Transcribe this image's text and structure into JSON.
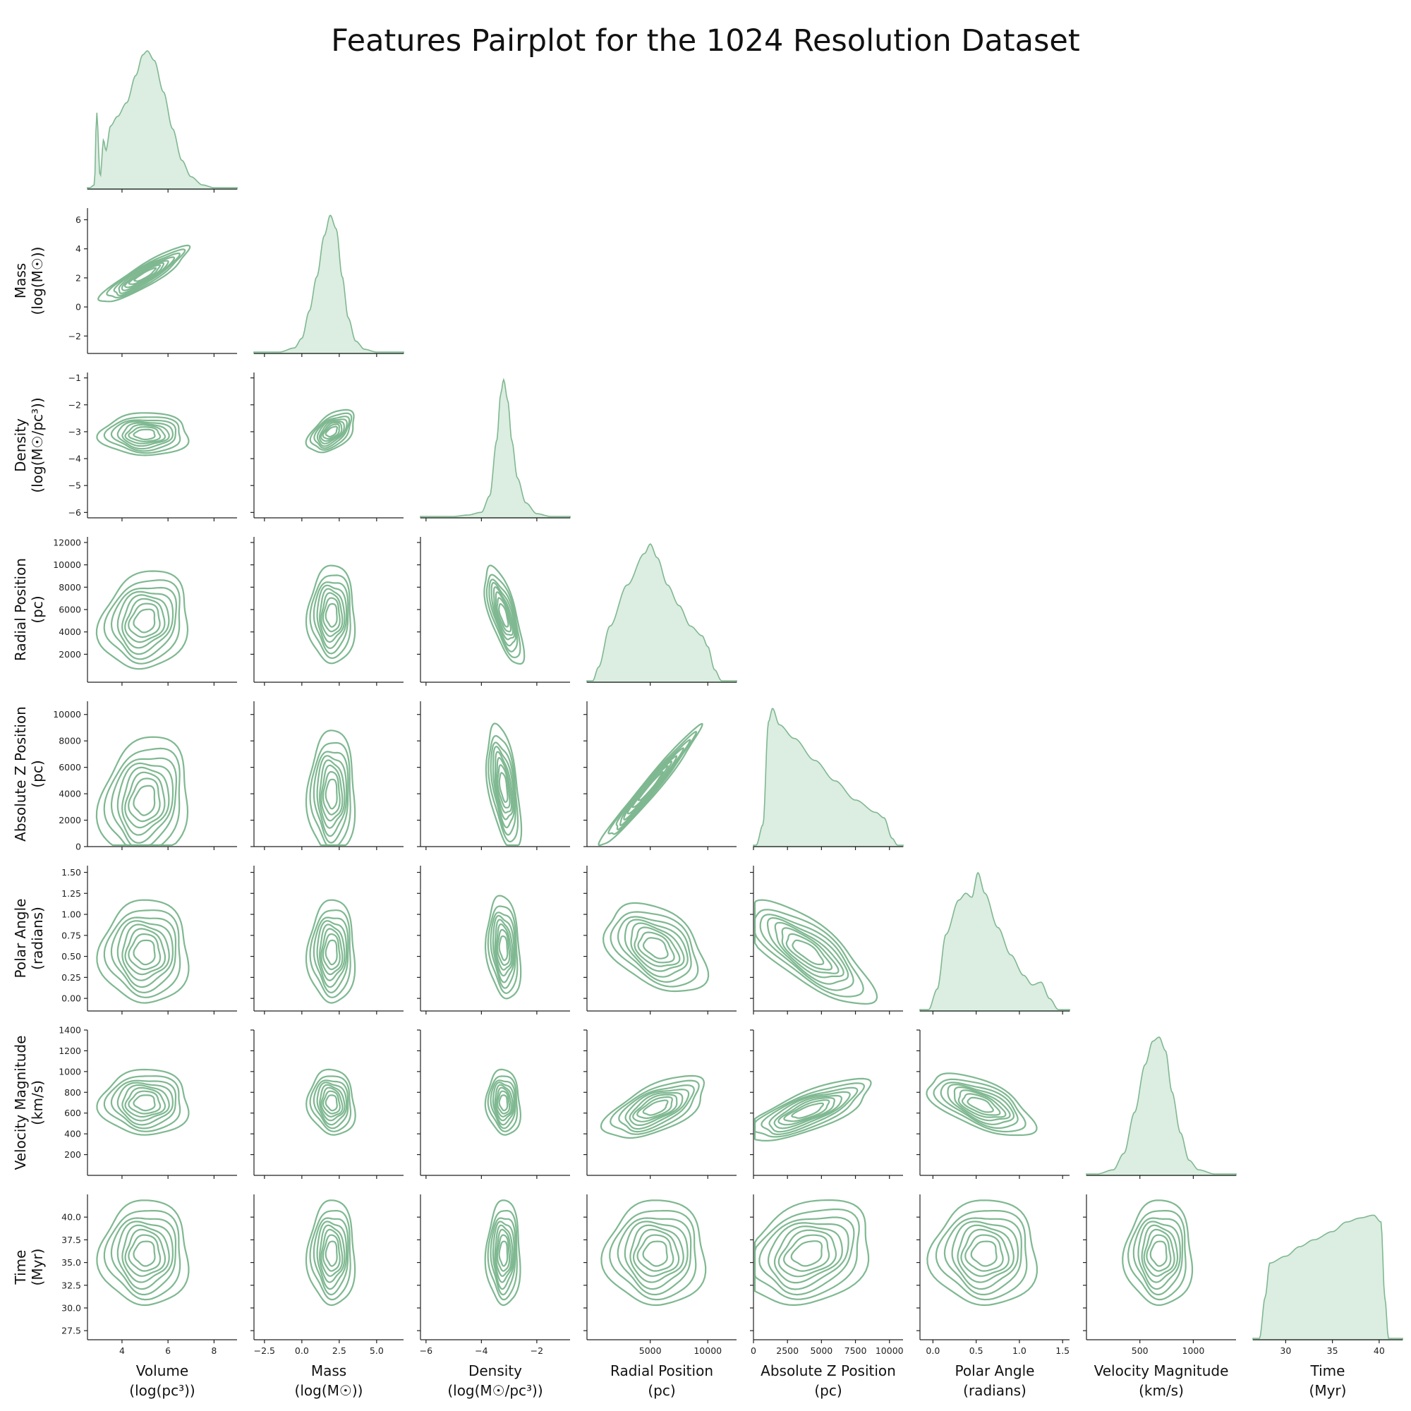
{
  "chart_data": {
    "type": "pairplot",
    "title": "Features Pairplot for the 1024 Resolution Dataset",
    "color": "#7fb891",
    "fill_color": "#dcede1",
    "lower_triangle": "kde contour (bivariate density)",
    "diagonal": "kde (univariate density, filled)",
    "upper_triangle": "empty (corner plot)",
    "variables": [
      {
        "key": "volume",
        "label_line1": "Volume",
        "label_line2": "(log(pc³))",
        "range": [
          2.5,
          9.0
        ],
        "ticks": [
          4,
          6,
          8
        ],
        "tick_labels": [
          "4",
          "6",
          "8"
        ],
        "diag_shape": [
          [
            2.6,
            0.0
          ],
          [
            2.8,
            0.02
          ],
          [
            2.9,
            0.55
          ],
          [
            3.05,
            0.08
          ],
          [
            3.2,
            0.35
          ],
          [
            3.3,
            0.27
          ],
          [
            3.5,
            0.45
          ],
          [
            3.8,
            0.52
          ],
          [
            4.2,
            0.62
          ],
          [
            4.6,
            0.82
          ],
          [
            4.9,
            0.97
          ],
          [
            5.1,
            1.0
          ],
          [
            5.4,
            0.93
          ],
          [
            5.8,
            0.7
          ],
          [
            6.2,
            0.43
          ],
          [
            6.6,
            0.2
          ],
          [
            7.0,
            0.08
          ],
          [
            7.5,
            0.02
          ],
          [
            8.0,
            0.0
          ],
          [
            9.0,
            0.0
          ]
        ]
      },
      {
        "key": "mass",
        "label_line1": "Mass",
        "label_line2": "(log(M☉))",
        "range": [
          -3.2,
          6.8
        ],
        "ticks": [
          -2.5,
          0.0,
          2.5,
          5.0
        ],
        "tick_labels": [
          "−2.5",
          "0.0",
          "2.5",
          "5.0"
        ],
        "y_ticks": [
          -2,
          0,
          2,
          4,
          6
        ],
        "y_tick_labels": [
          "−2",
          "0",
          "2",
          "4",
          "6"
        ],
        "diag_shape": [
          [
            -3.2,
            0.0
          ],
          [
            -1.5,
            0.0
          ],
          [
            -0.5,
            0.03
          ],
          [
            0.0,
            0.1
          ],
          [
            0.5,
            0.3
          ],
          [
            1.0,
            0.55
          ],
          [
            1.5,
            0.85
          ],
          [
            1.9,
            1.0
          ],
          [
            2.3,
            0.9
          ],
          [
            2.7,
            0.55
          ],
          [
            3.1,
            0.25
          ],
          [
            3.6,
            0.08
          ],
          [
            4.2,
            0.02
          ],
          [
            5.0,
            0.0
          ],
          [
            6.8,
            0.0
          ]
        ]
      },
      {
        "key": "density",
        "label_line1": "Density",
        "label_line2": "(log(M☉/pc³))",
        "range": [
          -6.2,
          -0.8
        ],
        "ticks": [
          -6,
          -4,
          -2
        ],
        "tick_labels": [
          "−6",
          "−4",
          "−2"
        ],
        "y_ticks": [
          -6,
          -5,
          -4,
          -3,
          -2,
          -1
        ],
        "y_tick_labels": [
          "−6",
          "−5",
          "−4",
          "−3",
          "−2",
          "−1"
        ],
        "diag_shape": [
          [
            -6.2,
            0.0
          ],
          [
            -5.0,
            0.0
          ],
          [
            -4.5,
            0.01
          ],
          [
            -4.0,
            0.03
          ],
          [
            -3.7,
            0.15
          ],
          [
            -3.45,
            0.55
          ],
          [
            -3.3,
            0.9
          ],
          [
            -3.2,
            1.0
          ],
          [
            -3.05,
            0.85
          ],
          [
            -2.9,
            0.55
          ],
          [
            -2.7,
            0.28
          ],
          [
            -2.4,
            0.1
          ],
          [
            -2.0,
            0.02
          ],
          [
            -1.5,
            0.0
          ],
          [
            -0.8,
            0.0
          ]
        ]
      },
      {
        "key": "radial",
        "label_line1": "Radial Position",
        "label_line2": "(pc)",
        "range": [
          -500,
          12500
        ],
        "ticks": [
          5000,
          10000
        ],
        "tick_labels": [
          "5000",
          "10000"
        ],
        "y_ticks": [
          2000,
          4000,
          6000,
          8000,
          10000,
          12000
        ],
        "y_tick_labels": [
          "2000",
          "4000",
          "6000",
          "8000",
          "10000",
          "12000"
        ],
        "diag_shape": [
          [
            -500,
            0.0
          ],
          [
            0,
            0.0
          ],
          [
            500,
            0.1
          ],
          [
            1500,
            0.4
          ],
          [
            3000,
            0.7
          ],
          [
            4500,
            0.93
          ],
          [
            5000,
            1.0
          ],
          [
            5600,
            0.9
          ],
          [
            6500,
            0.7
          ],
          [
            7500,
            0.55
          ],
          [
            8500,
            0.4
          ],
          [
            9500,
            0.33
          ],
          [
            10000,
            0.25
          ],
          [
            10600,
            0.08
          ],
          [
            11200,
            0.0
          ],
          [
            12500,
            0.0
          ]
        ]
      },
      {
        "key": "absz",
        "label_line1": "Absolute Z Position",
        "label_line2": "(pc)",
        "range": [
          0,
          11000
        ],
        "ticks": [
          0,
          2500,
          5000,
          7500,
          10000
        ],
        "tick_labels": [
          "0",
          "2500",
          "5000",
          "7500",
          "10000"
        ],
        "y_ticks": [
          0,
          2000,
          4000,
          6000,
          8000,
          10000
        ],
        "y_tick_labels": [
          "0",
          "2000",
          "4000",
          "6000",
          "8000",
          "10000"
        ],
        "diag_shape": [
          [
            0,
            0.0
          ],
          [
            200,
            0.0
          ],
          [
            700,
            0.15
          ],
          [
            1100,
            0.9
          ],
          [
            1400,
            1.0
          ],
          [
            1900,
            0.88
          ],
          [
            3000,
            0.78
          ],
          [
            4500,
            0.62
          ],
          [
            6000,
            0.47
          ],
          [
            7500,
            0.33
          ],
          [
            9000,
            0.24
          ],
          [
            9600,
            0.2
          ],
          [
            10200,
            0.05
          ],
          [
            10600,
            0.0
          ],
          [
            11000,
            0.0
          ]
        ]
      },
      {
        "key": "polar",
        "label_line1": "Polar Angle",
        "label_line2": "(radians)",
        "range": [
          -0.15,
          1.58
        ],
        "ticks": [
          0.0,
          0.5,
          1.0,
          1.5
        ],
        "tick_labels": [
          "0.0",
          "0.5",
          "1.0",
          "1.5"
        ],
        "y_ticks": [
          0.0,
          0.25,
          0.5,
          0.75,
          1.0,
          1.25,
          1.5
        ],
        "y_tick_labels": [
          "0.00",
          "0.25",
          "0.50",
          "0.75",
          "1.00",
          "1.25",
          "1.50"
        ],
        "diag_shape": [
          [
            -0.15,
            0.0
          ],
          [
            -0.05,
            0.0
          ],
          [
            0.05,
            0.15
          ],
          [
            0.15,
            0.55
          ],
          [
            0.3,
            0.8
          ],
          [
            0.38,
            0.85
          ],
          [
            0.45,
            0.82
          ],
          [
            0.52,
            1.0
          ],
          [
            0.6,
            0.85
          ],
          [
            0.75,
            0.6
          ],
          [
            0.9,
            0.4
          ],
          [
            1.05,
            0.25
          ],
          [
            1.15,
            0.18
          ],
          [
            1.25,
            0.2
          ],
          [
            1.35,
            0.08
          ],
          [
            1.45,
            0.0
          ],
          [
            1.58,
            0.0
          ]
        ]
      },
      {
        "key": "velocity",
        "label_line1": "Velocity Magnitude",
        "label_line2": "(km/s)",
        "range": [
          0,
          1400
        ],
        "ticks": [
          500,
          1000
        ],
        "tick_labels": [
          "500",
          "1000"
        ],
        "y_ticks": [
          200,
          400,
          600,
          800,
          1000,
          1200,
          1400
        ],
        "y_tick_labels": [
          "200",
          "400",
          "600",
          "800",
          "1000",
          "1200",
          "1400"
        ],
        "diag_shape": [
          [
            0,
            0.0
          ],
          [
            100,
            0.0
          ],
          [
            250,
            0.03
          ],
          [
            350,
            0.15
          ],
          [
            450,
            0.45
          ],
          [
            550,
            0.8
          ],
          [
            620,
            0.97
          ],
          [
            680,
            1.0
          ],
          [
            740,
            0.9
          ],
          [
            800,
            0.6
          ],
          [
            880,
            0.3
          ],
          [
            960,
            0.1
          ],
          [
            1050,
            0.03
          ],
          [
            1200,
            0.0
          ],
          [
            1400,
            0.0
          ]
        ]
      },
      {
        "key": "time",
        "label_line1": "Time",
        "label_line2": "(Myr)",
        "range": [
          26.5,
          42.5
        ],
        "ticks": [
          30,
          35,
          40
        ],
        "tick_labels": [
          "30",
          "35",
          "40"
        ],
        "y_ticks": [
          27.5,
          30.0,
          32.5,
          35.0,
          37.5,
          40.0
        ],
        "y_tick_labels": [
          "27.5",
          "30.0",
          "32.5",
          "35.0",
          "37.5",
          "40.0"
        ],
        "diag_shape": [
          [
            26.5,
            0.0
          ],
          [
            27.2,
            0.0
          ],
          [
            27.8,
            0.3
          ],
          [
            28.3,
            0.55
          ],
          [
            30,
            0.6
          ],
          [
            31.5,
            0.67
          ],
          [
            33,
            0.72
          ],
          [
            35,
            0.78
          ],
          [
            36.5,
            0.85
          ],
          [
            38,
            0.88
          ],
          [
            39.4,
            0.9
          ],
          [
            40.2,
            0.85
          ],
          [
            40.6,
            0.3
          ],
          [
            41,
            0.0
          ],
          [
            42.5,
            0.0
          ]
        ]
      }
    ],
    "bivariate_modes": [
      {
        "pair": [
          "volume",
          "mass"
        ],
        "cx": 5.0,
        "cy": 2.2,
        "sx": 1.1,
        "sy": 1.1,
        "correlation": 0.9
      },
      {
        "pair": [
          "volume",
          "density"
        ],
        "cx": 5.0,
        "cy": -3.1,
        "sx": 1.1,
        "sy": 0.45,
        "correlation": 0.0
      },
      {
        "pair": [
          "mass",
          "density"
        ],
        "cx": 2.0,
        "cy": -3.0,
        "sx": 0.9,
        "sy": 0.45,
        "correlation": 0.5
      },
      {
        "pair": [
          "volume",
          "radial"
        ],
        "cx": 5.0,
        "cy": 5000,
        "sx": 1.1,
        "sy": 2500,
        "correlation": 0.15
      },
      {
        "pair": [
          "mass",
          "radial"
        ],
        "cx": 2.0,
        "cy": 5500,
        "sx": 0.9,
        "sy": 2500,
        "correlation": 0.0
      },
      {
        "pair": [
          "density",
          "radial"
        ],
        "cx": -3.2,
        "cy": 5500,
        "sx": 0.4,
        "sy": 2500,
        "correlation": -0.7
      },
      {
        "pair": [
          "volume",
          "absz"
        ],
        "cx": 5.0,
        "cy": 3500,
        "sx": 1.1,
        "sy": 2700,
        "correlation": 0.15
      },
      {
        "pair": [
          "mass",
          "absz"
        ],
        "cx": 2.0,
        "cy": 4000,
        "sx": 0.9,
        "sy": 2700,
        "correlation": 0.0
      },
      {
        "pair": [
          "density",
          "absz"
        ],
        "cx": -3.2,
        "cy": 4500,
        "sx": 0.35,
        "sy": 2700,
        "correlation": -0.5
      },
      {
        "pair": [
          "radial",
          "absz"
        ],
        "cx": 5000,
        "cy": 4500,
        "sx": 2500,
        "sy": 2600,
        "correlation": 0.98
      },
      {
        "pair": [
          "volume",
          "polar"
        ],
        "cx": 5.0,
        "cy": 0.55,
        "sx": 1.1,
        "sy": 0.35,
        "correlation": 0.0
      },
      {
        "pair": [
          "mass",
          "polar"
        ],
        "cx": 2.0,
        "cy": 0.55,
        "sx": 0.9,
        "sy": 0.35,
        "correlation": 0.0
      },
      {
        "pair": [
          "density",
          "polar"
        ],
        "cx": -3.2,
        "cy": 0.6,
        "sx": 0.35,
        "sy": 0.35,
        "correlation": -0.2
      },
      {
        "pair": [
          "radial",
          "polar"
        ],
        "cx": 5500,
        "cy": 0.6,
        "sx": 2500,
        "sy": 0.3,
        "correlation": -0.4
      },
      {
        "pair": [
          "absz",
          "polar"
        ],
        "cx": 4000,
        "cy": 0.55,
        "sx": 2700,
        "sy": 0.35,
        "correlation": -0.75
      },
      {
        "pair": [
          "volume",
          "velocity"
        ],
        "cx": 5.0,
        "cy": 700,
        "sx": 1.1,
        "sy": 180,
        "correlation": 0.0
      },
      {
        "pair": [
          "mass",
          "velocity"
        ],
        "cx": 2.0,
        "cy": 700,
        "sx": 0.9,
        "sy": 180,
        "correlation": -0.1
      },
      {
        "pair": [
          "density",
          "velocity"
        ],
        "cx": -3.2,
        "cy": 700,
        "sx": 0.35,
        "sy": 180,
        "correlation": -0.1
      },
      {
        "pair": [
          "radial",
          "velocity"
        ],
        "cx": 5500,
        "cy": 650,
        "sx": 2500,
        "sy": 170,
        "correlation": 0.6
      },
      {
        "pair": [
          "absz",
          "velocity"
        ],
        "cx": 4000,
        "cy": 620,
        "sx": 2700,
        "sy": 170,
        "correlation": 0.75
      },
      {
        "pair": [
          "polar",
          "velocity"
        ],
        "cx": 0.55,
        "cy": 680,
        "sx": 0.35,
        "sy": 170,
        "correlation": -0.6
      },
      {
        "pair": [
          "volume",
          "time"
        ],
        "cx": 5.0,
        "cy": 36.0,
        "sx": 1.1,
        "sy": 3.3,
        "correlation": 0.0
      },
      {
        "pair": [
          "mass",
          "time"
        ],
        "cx": 2.0,
        "cy": 36.0,
        "sx": 0.9,
        "sy": 3.3,
        "correlation": 0.0
      },
      {
        "pair": [
          "density",
          "time"
        ],
        "cx": -3.2,
        "cy": 36.0,
        "sx": 0.35,
        "sy": 3.3,
        "correlation": 0.0
      },
      {
        "pair": [
          "radial",
          "time"
        ],
        "cx": 5500,
        "cy": 36.0,
        "sx": 2500,
        "sy": 3.3,
        "correlation": 0.0
      },
      {
        "pair": [
          "absz",
          "time"
        ],
        "cx": 4000,
        "cy": 36.0,
        "sx": 2700,
        "sy": 3.3,
        "correlation": 0.25
      },
      {
        "pair": [
          "polar",
          "time"
        ],
        "cx": 0.6,
        "cy": 36.0,
        "sx": 0.35,
        "sy": 3.3,
        "correlation": 0.0
      },
      {
        "pair": [
          "velocity",
          "time"
        ],
        "cx": 680,
        "cy": 36.0,
        "sx": 180,
        "sy": 3.3,
        "correlation": 0.0
      }
    ],
    "contour_levels": [
      0.12,
      0.22,
      0.33,
      0.44,
      0.56,
      0.67,
      0.78,
      0.89
    ]
  }
}
